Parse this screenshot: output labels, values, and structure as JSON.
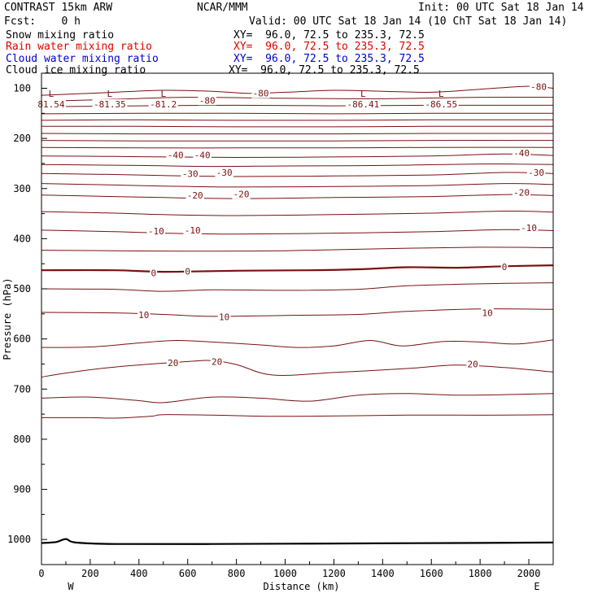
{
  "header": {
    "title_left": "CONTRAST 15km ARW",
    "title_center": "NCAR/MMM",
    "init": "Init: 00 UTC Sat 18 Jan 14",
    "fcst": "Fcst:    0 h",
    "valid": "Valid: 00 UTC Sat 18 Jan 14 (10 ChT Sat 18 Jan 14)",
    "fields": [
      {
        "label": "Snow mixing ratio",
        "xy": "XY=  96.0, 72.5 to 235.3, 72.5",
        "color": "#000000"
      },
      {
        "label": "Rain water mixing ratio",
        "xy": "XY=  96.0, 72.5 to 235.3, 72.5",
        "color": "#e00000"
      },
      {
        "label": "Cloud water mixing ratio",
        "xy": "XY=  96.0, 72.5 to 235.3, 72.5",
        "color": "#0000cc"
      },
      {
        "label": "Cloud ice mixing ratio",
        "xy": "XY=  96.0, 72.5 to 235.3, 72.5",
        "color": "#000000"
      }
    ]
  },
  "chart_data": {
    "type": "contour",
    "xlabel": "Distance (km)",
    "ylabel": "Pressure (hPa)",
    "xlim": [
      0,
      2100
    ],
    "ylim": [
      1050,
      70
    ],
    "xticks": [
      0,
      200,
      400,
      600,
      800,
      1000,
      1200,
      1400,
      1600,
      1800,
      2000
    ],
    "yticks": [
      100,
      200,
      300,
      400,
      500,
      600,
      700,
      800,
      900,
      1000
    ],
    "direction_labels": {
      "west": "W",
      "east": "E"
    },
    "contour_color": "#7a1010",
    "contour_interval": 5,
    "contours": [
      {
        "level": -80,
        "points": [
          [
            0,
            114
          ],
          [
            150,
            111
          ],
          [
            300,
            108
          ],
          [
            500,
            104
          ],
          [
            700,
            106
          ],
          [
            850,
            110
          ],
          [
            1000,
            108
          ],
          [
            1200,
            104
          ],
          [
            1400,
            106
          ],
          [
            1600,
            108
          ],
          [
            1800,
            102
          ],
          [
            2000,
            96
          ],
          [
            2100,
            100
          ]
        ]
      },
      {
        "level": -80,
        "points": [
          [
            0,
            126
          ],
          [
            300,
            122
          ],
          [
            600,
            118
          ],
          [
            1000,
            120
          ],
          [
            1400,
            121
          ],
          [
            1800,
            118
          ],
          [
            2100,
            118
          ]
        ]
      },
      {
        "level": -75,
        "points": [
          [
            0,
            137
          ],
          [
            400,
            135
          ],
          [
            800,
            134
          ],
          [
            1200,
            135
          ],
          [
            1600,
            134
          ],
          [
            2100,
            134
          ]
        ]
      },
      {
        "level": -70,
        "points": [
          [
            0,
            151
          ],
          [
            400,
            150
          ],
          [
            800,
            150
          ],
          [
            1200,
            151
          ],
          [
            1600,
            150
          ],
          [
            2100,
            150
          ]
        ]
      },
      {
        "level": -65,
        "points": [
          [
            0,
            164
          ],
          [
            400,
            163
          ],
          [
            800,
            164
          ],
          [
            1200,
            164
          ],
          [
            1600,
            163
          ],
          [
            2100,
            163
          ]
        ]
      },
      {
        "level": -60,
        "points": [
          [
            0,
            176
          ],
          [
            400,
            176
          ],
          [
            800,
            177
          ],
          [
            1200,
            177
          ],
          [
            1600,
            176
          ],
          [
            2100,
            176
          ]
        ]
      },
      {
        "level": -55,
        "points": [
          [
            0,
            190
          ],
          [
            400,
            191
          ],
          [
            800,
            191
          ],
          [
            1200,
            191
          ],
          [
            1600,
            190
          ],
          [
            2100,
            190
          ]
        ]
      },
      {
        "level": -50,
        "points": [
          [
            0,
            204
          ],
          [
            400,
            205
          ],
          [
            800,
            205
          ],
          [
            1200,
            205
          ],
          [
            1600,
            204
          ],
          [
            2100,
            204
          ]
        ]
      },
      {
        "level": -45,
        "points": [
          [
            0,
            218
          ],
          [
            400,
            219
          ],
          [
            800,
            219
          ],
          [
            1200,
            219
          ],
          [
            1600,
            218
          ],
          [
            2100,
            218
          ]
        ]
      },
      {
        "level": -40,
        "points": [
          [
            0,
            235
          ],
          [
            300,
            236
          ],
          [
            500,
            237
          ],
          [
            800,
            238
          ],
          [
            1200,
            237
          ],
          [
            1600,
            235
          ],
          [
            1900,
            231
          ],
          [
            2100,
            234
          ]
        ]
      },
      {
        "level": -35,
        "points": [
          [
            0,
            252
          ],
          [
            400,
            254
          ],
          [
            700,
            256
          ],
          [
            1000,
            255
          ],
          [
            1400,
            254
          ],
          [
            1800,
            251
          ],
          [
            2100,
            252
          ]
        ]
      },
      {
        "level": -30,
        "points": [
          [
            0,
            270
          ],
          [
            300,
            272
          ],
          [
            500,
            274
          ],
          [
            800,
            276
          ],
          [
            1200,
            275
          ],
          [
            1600,
            273
          ],
          [
            1900,
            268
          ],
          [
            2100,
            270
          ]
        ]
      },
      {
        "level": -25,
        "points": [
          [
            0,
            290
          ],
          [
            300,
            293
          ],
          [
            500,
            295
          ],
          [
            800,
            297
          ],
          [
            1200,
            296
          ],
          [
            1600,
            294
          ],
          [
            1900,
            290
          ],
          [
            2100,
            292
          ]
        ]
      },
      {
        "level": -20,
        "points": [
          [
            0,
            313
          ],
          [
            300,
            316
          ],
          [
            500,
            318
          ],
          [
            800,
            320
          ],
          [
            1200,
            318
          ],
          [
            1600,
            316
          ],
          [
            1900,
            312
          ],
          [
            2100,
            314
          ]
        ]
      },
      {
        "level": -15,
        "points": [
          [
            0,
            346
          ],
          [
            300,
            349
          ],
          [
            500,
            352
          ],
          [
            800,
            354
          ],
          [
            1200,
            352
          ],
          [
            1600,
            349
          ],
          [
            1900,
            345
          ],
          [
            2100,
            347
          ]
        ]
      },
      {
        "level": -10,
        "points": [
          [
            0,
            383
          ],
          [
            300,
            386
          ],
          [
            500,
            389
          ],
          [
            800,
            391
          ],
          [
            1200,
            389
          ],
          [
            1600,
            386
          ],
          [
            1900,
            382
          ],
          [
            2100,
            384
          ]
        ]
      },
      {
        "level": -5,
        "points": [
          [
            0,
            423
          ],
          [
            300,
            424
          ],
          [
            600,
            425
          ],
          [
            1000,
            424
          ],
          [
            1400,
            420
          ],
          [
            1800,
            417
          ],
          [
            2100,
            418
          ]
        ]
      },
      {
        "level": 0,
        "points": [
          [
            0,
            463
          ],
          [
            300,
            463
          ],
          [
            500,
            466
          ],
          [
            800,
            464
          ],
          [
            1100,
            463
          ],
          [
            1300,
            461
          ],
          [
            1500,
            457
          ],
          [
            1700,
            458
          ],
          [
            1900,
            455
          ],
          [
            2100,
            453
          ]
        ]
      },
      {
        "level": 5,
        "points": [
          [
            0,
            500
          ],
          [
            300,
            501
          ],
          [
            500,
            505
          ],
          [
            700,
            502
          ],
          [
            1000,
            503
          ],
          [
            1300,
            501
          ],
          [
            1500,
            494
          ],
          [
            1800,
            490
          ],
          [
            2100,
            488
          ]
        ]
      },
      {
        "level": 10,
        "points": [
          [
            0,
            547
          ],
          [
            300,
            548
          ],
          [
            500,
            551
          ],
          [
            700,
            555
          ],
          [
            1000,
            553
          ],
          [
            1300,
            551
          ],
          [
            1500,
            545
          ],
          [
            1800,
            540
          ],
          [
            2100,
            541
          ]
        ]
      },
      {
        "level": 15,
        "points": [
          [
            0,
            617
          ],
          [
            200,
            616
          ],
          [
            400,
            608
          ],
          [
            550,
            603
          ],
          [
            700,
            606
          ],
          [
            900,
            612
          ],
          [
            1050,
            617
          ],
          [
            1200,
            614
          ],
          [
            1350,
            603
          ],
          [
            1480,
            614
          ],
          [
            1650,
            605
          ],
          [
            1800,
            606
          ],
          [
            1950,
            610
          ],
          [
            2100,
            602
          ]
        ]
      },
      {
        "level": 20,
        "points": [
          [
            0,
            676
          ],
          [
            100,
            668
          ],
          [
            300,
            656
          ],
          [
            600,
            645
          ],
          [
            700,
            643
          ],
          [
            800,
            651
          ],
          [
            950,
            672
          ],
          [
            1200,
            667
          ],
          [
            1500,
            659
          ],
          [
            1700,
            652
          ],
          [
            1900,
            657
          ],
          [
            2100,
            666
          ]
        ]
      },
      {
        "level": 25,
        "points": [
          [
            0,
            718
          ],
          [
            200,
            716
          ],
          [
            400,
            723
          ],
          [
            500,
            727
          ],
          [
            700,
            716
          ],
          [
            900,
            718
          ],
          [
            1100,
            724
          ],
          [
            1300,
            712
          ],
          [
            1500,
            709
          ],
          [
            1700,
            712
          ],
          [
            1900,
            711
          ],
          [
            2100,
            709
          ]
        ]
      },
      {
        "level": 30,
        "points": [
          [
            0,
            757
          ],
          [
            200,
            757
          ],
          [
            300,
            758
          ],
          [
            450,
            754
          ],
          [
            500,
            751
          ],
          [
            700,
            752
          ],
          [
            900,
            754
          ],
          [
            1100,
            754
          ],
          [
            1300,
            753
          ],
          [
            1500,
            752
          ],
          [
            1700,
            752
          ],
          [
            1900,
            752
          ],
          [
            2100,
            751
          ]
        ]
      }
    ],
    "terrain": {
      "points": [
        [
          0,
          1007
        ],
        [
          60,
          1005
        ],
        [
          100,
          999
        ],
        [
          140,
          1006
        ],
        [
          300,
          1009
        ],
        [
          700,
          1009
        ],
        [
          1200,
          1008
        ],
        [
          1700,
          1007
        ],
        [
          2100,
          1006
        ]
      ]
    },
    "level_labels": [
      {
        "text": "-80",
        "x": 900,
        "p": 110
      },
      {
        "text": "-80",
        "x": 2040,
        "p": 97
      },
      {
        "text": "-80",
        "x": 680,
        "p": 124
      },
      {
        "text": "-40",
        "x": 550,
        "p": 233
      },
      {
        "text": "-40",
        "x": 660,
        "p": 233
      },
      {
        "text": "-40",
        "x": 1970,
        "p": 229
      },
      {
        "text": "-30",
        "x": 610,
        "p": 270
      },
      {
        "text": "-30",
        "x": 750,
        "p": 268
      },
      {
        "text": "-30",
        "x": 2030,
        "p": 268
      },
      {
        "text": "-20",
        "x": 630,
        "p": 313
      },
      {
        "text": "-20",
        "x": 820,
        "p": 311
      },
      {
        "text": "-20",
        "x": 1970,
        "p": 308
      },
      {
        "text": "-10",
        "x": 470,
        "p": 385
      },
      {
        "text": "-10",
        "x": 620,
        "p": 383
      },
      {
        "text": "-10",
        "x": 2000,
        "p": 378
      },
      {
        "text": "0",
        "x": 460,
        "p": 468
      },
      {
        "text": "0",
        "x": 600,
        "p": 465
      },
      {
        "text": "0",
        "x": 1900,
        "p": 456
      },
      {
        "text": "10",
        "x": 420,
        "p": 552
      },
      {
        "text": "10",
        "x": 750,
        "p": 556
      },
      {
        "text": "10",
        "x": 1830,
        "p": 548
      },
      {
        "text": "20",
        "x": 540,
        "p": 648
      },
      {
        "text": "20",
        "x": 720,
        "p": 645
      },
      {
        "text": "20",
        "x": 1770,
        "p": 650
      }
    ],
    "minima": [
      {
        "mark": "L",
        "value": "81.54",
        "x": 40,
        "p": 122
      },
      {
        "mark": "L",
        "value": "-81.35",
        "x": 280,
        "p": 122
      },
      {
        "mark": "L",
        "value": "-81.2",
        "x": 500,
        "p": 122
      },
      {
        "mark": "L",
        "value": "-86.41",
        "x": 1320,
        "p": 122
      },
      {
        "mark": "L",
        "value": "-86.55",
        "x": 1640,
        "p": 122
      }
    ]
  }
}
